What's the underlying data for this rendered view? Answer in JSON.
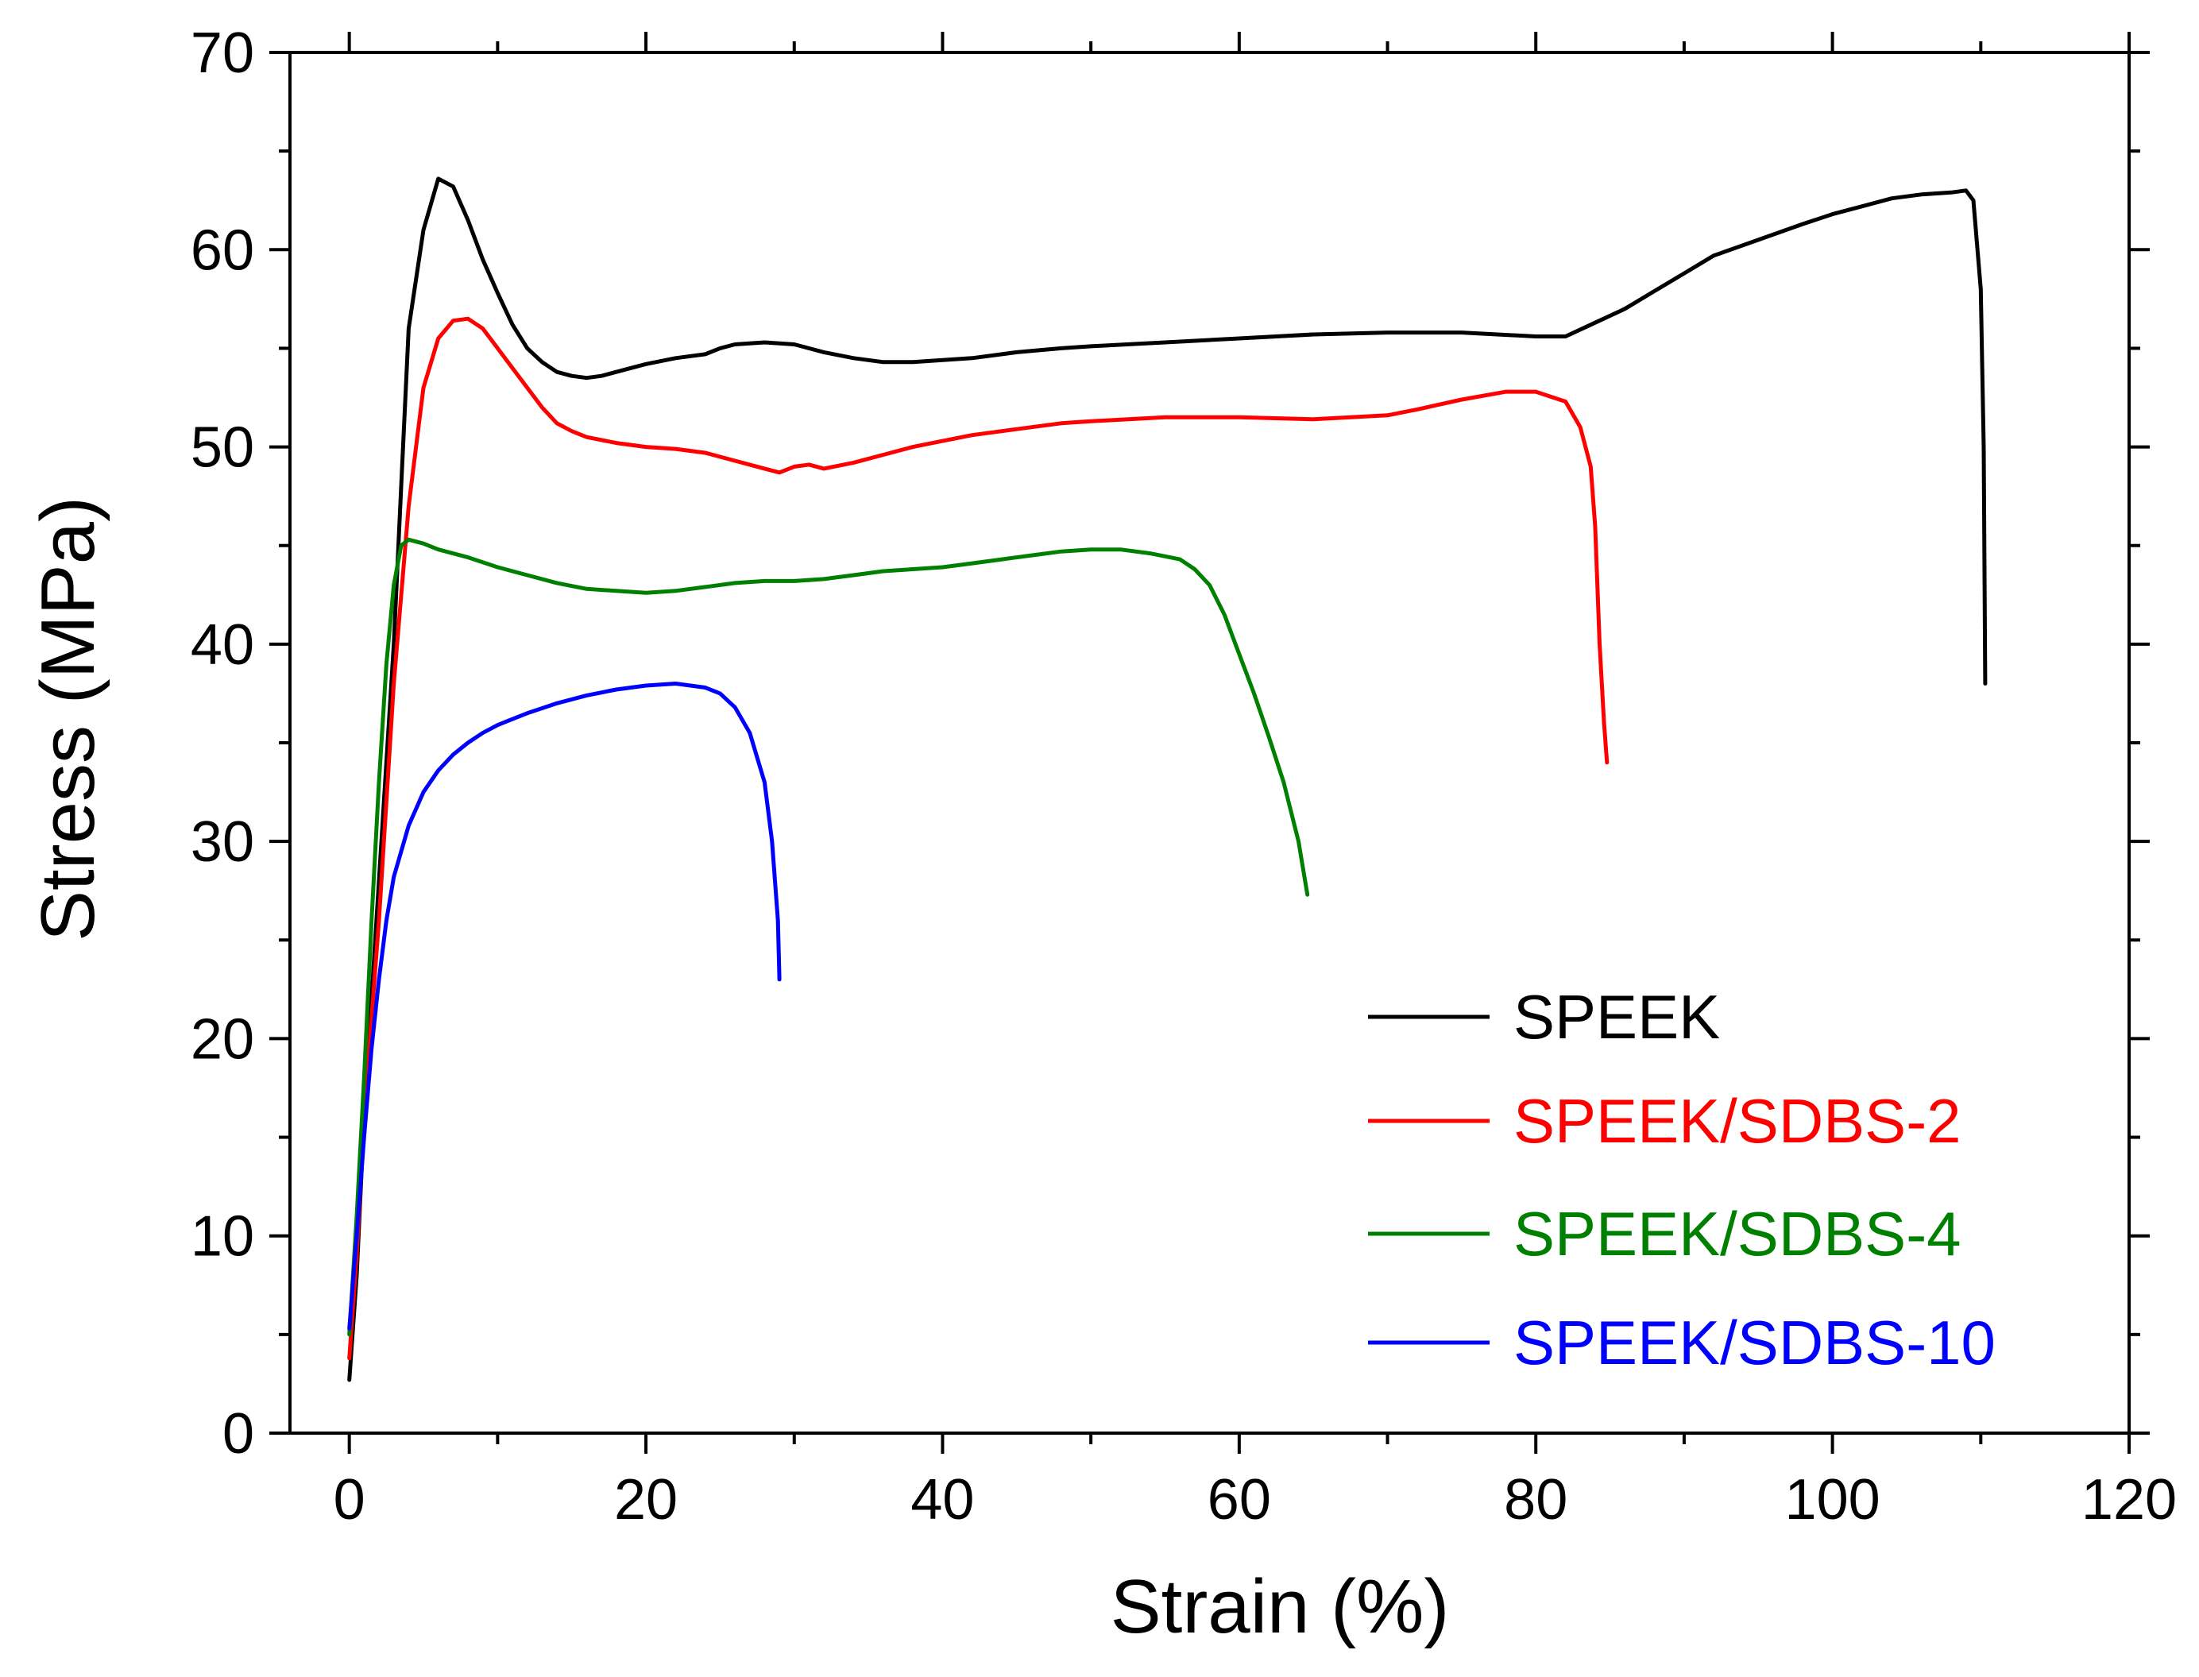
{
  "chart_data": {
    "type": "line",
    "title": "",
    "xlabel": "Strain (%)",
    "ylabel": "Stress (MPa)",
    "xlim": [
      -4,
      120
    ],
    "ylim": [
      0,
      70
    ],
    "xticks": [
      0,
      20,
      40,
      60,
      80,
      100,
      120
    ],
    "yticks": [
      0,
      10,
      20,
      30,
      40,
      50,
      60,
      70
    ],
    "legend_position": "bottom-right",
    "series": [
      {
        "name": "SPEEK",
        "color": "#000000",
        "points": [
          [
            0,
            2.7
          ],
          [
            0.5,
            8
          ],
          [
            1,
            16
          ],
          [
            2,
            28
          ],
          [
            3,
            40
          ],
          [
            3.5,
            48
          ],
          [
            4,
            56
          ],
          [
            5,
            61
          ],
          [
            6,
            63.6
          ],
          [
            7,
            63.2
          ],
          [
            8,
            61.5
          ],
          [
            9,
            59.5
          ],
          [
            10,
            57.8
          ],
          [
            11,
            56.2
          ],
          [
            12,
            55
          ],
          [
            13,
            54.3
          ],
          [
            14,
            53.8
          ],
          [
            15,
            53.6
          ],
          [
            16,
            53.5
          ],
          [
            17,
            53.6
          ],
          [
            18,
            53.8
          ],
          [
            20,
            54.2
          ],
          [
            22,
            54.5
          ],
          [
            24,
            54.7
          ],
          [
            25,
            55
          ],
          [
            26,
            55.2
          ],
          [
            28,
            55.3
          ],
          [
            30,
            55.2
          ],
          [
            32,
            54.8
          ],
          [
            34,
            54.5
          ],
          [
            36,
            54.3
          ],
          [
            38,
            54.3
          ],
          [
            40,
            54.4
          ],
          [
            42,
            54.5
          ],
          [
            45,
            54.8
          ],
          [
            48,
            55
          ],
          [
            50,
            55.1
          ],
          [
            55,
            55.3
          ],
          [
            60,
            55.5
          ],
          [
            65,
            55.7
          ],
          [
            70,
            55.8
          ],
          [
            75,
            55.8
          ],
          [
            80,
            55.6
          ],
          [
            82,
            55.6
          ],
          [
            84,
            56.3
          ],
          [
            86,
            57
          ],
          [
            88,
            57.9
          ],
          [
            90,
            58.8
          ],
          [
            92,
            59.7
          ],
          [
            95,
            60.5
          ],
          [
            98,
            61.3
          ],
          [
            100,
            61.8
          ],
          [
            102,
            62.2
          ],
          [
            104,
            62.6
          ],
          [
            106,
            62.8
          ],
          [
            108,
            62.9
          ],
          [
            109,
            63
          ],
          [
            109.5,
            62.5
          ],
          [
            110,
            58
          ],
          [
            110.2,
            50
          ],
          [
            110.3,
            38
          ]
        ]
      },
      {
        "name": "SPEEK/SDBS-2",
        "color": "#ff0000",
        "points": [
          [
            0,
            3.8
          ],
          [
            0.5,
            9
          ],
          [
            1,
            16
          ],
          [
            2,
            26
          ],
          [
            3,
            38
          ],
          [
            4,
            47
          ],
          [
            5,
            53
          ],
          [
            6,
            55.5
          ],
          [
            7,
            56.4
          ],
          [
            8,
            56.5
          ],
          [
            9,
            56
          ],
          [
            10,
            55
          ],
          [
            11,
            54
          ],
          [
            12,
            53
          ],
          [
            13,
            52
          ],
          [
            14,
            51.2
          ],
          [
            15,
            50.8
          ],
          [
            16,
            50.5
          ],
          [
            18,
            50.2
          ],
          [
            20,
            50
          ],
          [
            22,
            49.9
          ],
          [
            24,
            49.7
          ],
          [
            26,
            49.3
          ],
          [
            28,
            48.9
          ],
          [
            29,
            48.7
          ],
          [
            30,
            49
          ],
          [
            31,
            49.1
          ],
          [
            32,
            48.9
          ],
          [
            34,
            49.2
          ],
          [
            36,
            49.6
          ],
          [
            38,
            50
          ],
          [
            40,
            50.3
          ],
          [
            42,
            50.6
          ],
          [
            45,
            50.9
          ],
          [
            48,
            51.2
          ],
          [
            50,
            51.3
          ],
          [
            55,
            51.5
          ],
          [
            60,
            51.5
          ],
          [
            65,
            51.4
          ],
          [
            70,
            51.6
          ],
          [
            72,
            51.9
          ],
          [
            75,
            52.4
          ],
          [
            78,
            52.8
          ],
          [
            80,
            52.8
          ],
          [
            82,
            52.3
          ],
          [
            83,
            51
          ],
          [
            83.7,
            49
          ],
          [
            84,
            46
          ],
          [
            84.3,
            40
          ],
          [
            84.6,
            36
          ],
          [
            84.8,
            34
          ]
        ]
      },
      {
        "name": "SPEEK/SDBS-4",
        "color": "#008000",
        "points": [
          [
            0,
            5
          ],
          [
            0.5,
            11
          ],
          [
            1,
            18
          ],
          [
            1.5,
            26
          ],
          [
            2,
            33
          ],
          [
            2.5,
            39
          ],
          [
            3,
            43
          ],
          [
            3.5,
            45
          ],
          [
            4,
            45.3
          ],
          [
            5,
            45.1
          ],
          [
            6,
            44.8
          ],
          [
            8,
            44.4
          ],
          [
            10,
            43.9
          ],
          [
            12,
            43.5
          ],
          [
            14,
            43.1
          ],
          [
            16,
            42.8
          ],
          [
            18,
            42.7
          ],
          [
            20,
            42.6
          ],
          [
            22,
            42.7
          ],
          [
            24,
            42.9
          ],
          [
            26,
            43.1
          ],
          [
            28,
            43.2
          ],
          [
            30,
            43.2
          ],
          [
            32,
            43.3
          ],
          [
            34,
            43.5
          ],
          [
            36,
            43.7
          ],
          [
            38,
            43.8
          ],
          [
            40,
            43.9
          ],
          [
            42,
            44.1
          ],
          [
            44,
            44.3
          ],
          [
            46,
            44.5
          ],
          [
            48,
            44.7
          ],
          [
            50,
            44.8
          ],
          [
            52,
            44.8
          ],
          [
            54,
            44.6
          ],
          [
            56,
            44.3
          ],
          [
            57,
            43.8
          ],
          [
            58,
            43
          ],
          [
            59,
            41.5
          ],
          [
            60,
            39.5
          ],
          [
            61,
            37.5
          ],
          [
            62,
            35.3
          ],
          [
            63,
            33
          ],
          [
            64,
            30
          ],
          [
            64.6,
            27.3
          ]
        ]
      },
      {
        "name": "SPEEK/SDBS-10",
        "color": "#0000ff",
        "points": [
          [
            0,
            5.3
          ],
          [
            0.5,
            10
          ],
          [
            1,
            15
          ],
          [
            1.5,
            19.5
          ],
          [
            2,
            23
          ],
          [
            2.5,
            26
          ],
          [
            3,
            28.2
          ],
          [
            4,
            30.8
          ],
          [
            5,
            32.5
          ],
          [
            6,
            33.6
          ],
          [
            7,
            34.4
          ],
          [
            8,
            35
          ],
          [
            9,
            35.5
          ],
          [
            10,
            35.9
          ],
          [
            11,
            36.2
          ],
          [
            12,
            36.5
          ],
          [
            14,
            37
          ],
          [
            16,
            37.4
          ],
          [
            18,
            37.7
          ],
          [
            20,
            37.9
          ],
          [
            22,
            38
          ],
          [
            24,
            37.8
          ],
          [
            25,
            37.5
          ],
          [
            26,
            36.8
          ],
          [
            27,
            35.5
          ],
          [
            28,
            33
          ],
          [
            28.5,
            30
          ],
          [
            28.9,
            26
          ],
          [
            29,
            23
          ]
        ]
      }
    ]
  },
  "legend": {
    "items": [
      {
        "label": "SPEEK",
        "color": "#000000"
      },
      {
        "label": "SPEEK/SDBS-2",
        "color": "#ff0000"
      },
      {
        "label": "SPEEK/SDBS-4",
        "color": "#008000"
      },
      {
        "label": "SPEEK/SDBS-10",
        "color": "#0000ff"
      }
    ]
  }
}
